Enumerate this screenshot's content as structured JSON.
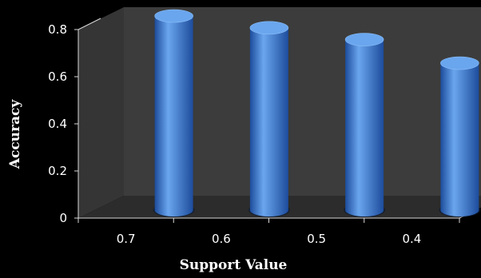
{
  "chart_data": {
    "type": "bar",
    "style": "3d-cylinder",
    "categories": [
      "0.7",
      "0.6",
      "0.5",
      "0.4"
    ],
    "values": [
      0.81,
      0.76,
      0.71,
      0.61
    ],
    "xlabel": "Support Value",
    "ylabel": "Accuracy",
    "ylim": [
      0,
      0.8
    ],
    "yticks": [
      "0",
      "0.2",
      "0.4",
      "0.6",
      "0.8"
    ],
    "grid": false,
    "legend": "none",
    "colors": {
      "bar": "#3f7fd6",
      "bar_dark": "#1d4c9c",
      "bar_light": "#6aa6ee",
      "wall": "#3c3c3c",
      "floor": "#2c2c2c",
      "background": "#000000",
      "text": "#ffffff"
    }
  }
}
